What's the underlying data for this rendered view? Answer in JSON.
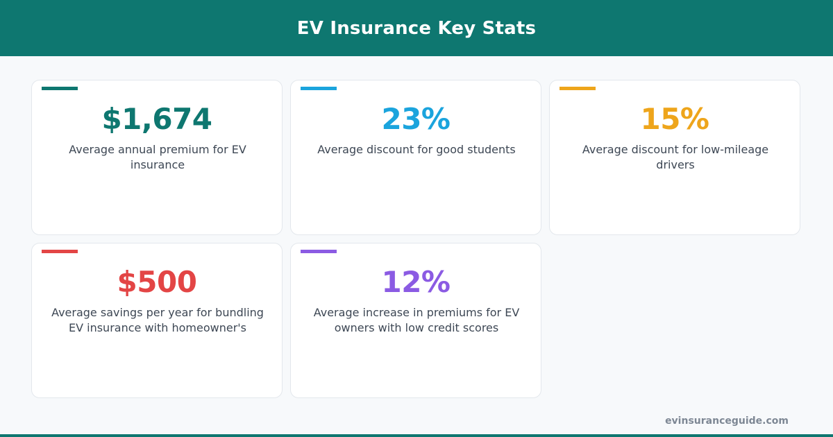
{
  "header": {
    "title": "EV Insurance Key Stats",
    "color": "#0e7770"
  },
  "stats": [
    {
      "value": "$1,674",
      "label": "Average annual premium for EV insurance",
      "color": "#0e7770"
    },
    {
      "value": "23%",
      "label": "Average discount for good students",
      "color": "#1ba4dd"
    },
    {
      "value": "15%",
      "label": "Average discount for low-mileage drivers",
      "color": "#eea51b"
    },
    {
      "value": "$500",
      "label": "Average savings per year for bundling EV insurance with homeowner's",
      "color": "#e34545"
    },
    {
      "value": "12%",
      "label": "Average increase in premiums for EV owners with low credit scores",
      "color": "#8b5be3"
    }
  ],
  "footer": {
    "url": "evinsuranceguide.com"
  }
}
